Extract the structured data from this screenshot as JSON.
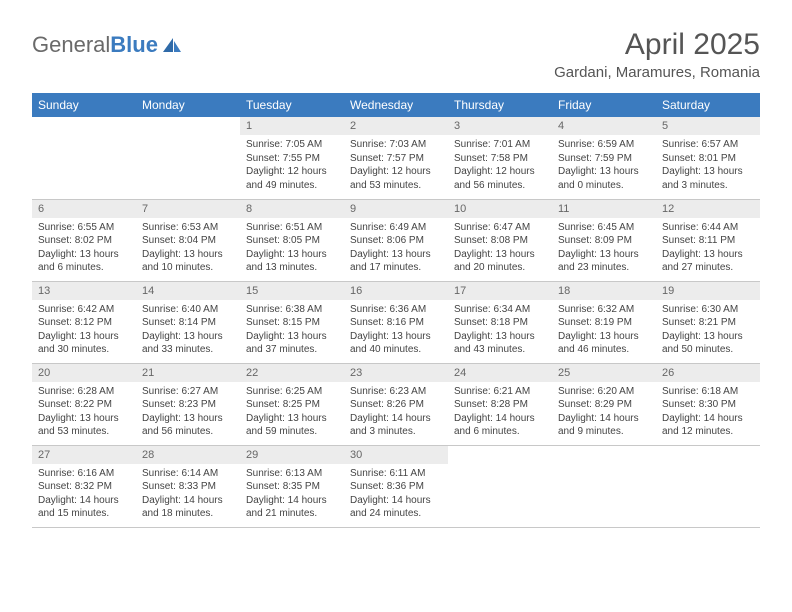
{
  "brand": {
    "name_gray": "General",
    "name_blue": "Blue"
  },
  "title": "April 2025",
  "location": "Gardani, Maramures, Romania",
  "colors": {
    "header_bg": "#3b7bbf",
    "header_text": "#ffffff",
    "daynum_bg": "#ececec",
    "text": "#444444",
    "border": "#c8c8c8"
  },
  "typography": {
    "title_fontsize": 30,
    "location_fontsize": 15,
    "header_fontsize": 12,
    "cell_fontsize": 10
  },
  "day_headers": [
    "Sunday",
    "Monday",
    "Tuesday",
    "Wednesday",
    "Thursday",
    "Friday",
    "Saturday"
  ],
  "weeks": [
    [
      {
        "n": "",
        "sunrise": "",
        "sunset": "",
        "daylight": ""
      },
      {
        "n": "",
        "sunrise": "",
        "sunset": "",
        "daylight": ""
      },
      {
        "n": "1",
        "sunrise": "Sunrise: 7:05 AM",
        "sunset": "Sunset: 7:55 PM",
        "daylight": "Daylight: 12 hours and 49 minutes."
      },
      {
        "n": "2",
        "sunrise": "Sunrise: 7:03 AM",
        "sunset": "Sunset: 7:57 PM",
        "daylight": "Daylight: 12 hours and 53 minutes."
      },
      {
        "n": "3",
        "sunrise": "Sunrise: 7:01 AM",
        "sunset": "Sunset: 7:58 PM",
        "daylight": "Daylight: 12 hours and 56 minutes."
      },
      {
        "n": "4",
        "sunrise": "Sunrise: 6:59 AM",
        "sunset": "Sunset: 7:59 PM",
        "daylight": "Daylight: 13 hours and 0 minutes."
      },
      {
        "n": "5",
        "sunrise": "Sunrise: 6:57 AM",
        "sunset": "Sunset: 8:01 PM",
        "daylight": "Daylight: 13 hours and 3 minutes."
      }
    ],
    [
      {
        "n": "6",
        "sunrise": "Sunrise: 6:55 AM",
        "sunset": "Sunset: 8:02 PM",
        "daylight": "Daylight: 13 hours and 6 minutes."
      },
      {
        "n": "7",
        "sunrise": "Sunrise: 6:53 AM",
        "sunset": "Sunset: 8:04 PM",
        "daylight": "Daylight: 13 hours and 10 minutes."
      },
      {
        "n": "8",
        "sunrise": "Sunrise: 6:51 AM",
        "sunset": "Sunset: 8:05 PM",
        "daylight": "Daylight: 13 hours and 13 minutes."
      },
      {
        "n": "9",
        "sunrise": "Sunrise: 6:49 AM",
        "sunset": "Sunset: 8:06 PM",
        "daylight": "Daylight: 13 hours and 17 minutes."
      },
      {
        "n": "10",
        "sunrise": "Sunrise: 6:47 AM",
        "sunset": "Sunset: 8:08 PM",
        "daylight": "Daylight: 13 hours and 20 minutes."
      },
      {
        "n": "11",
        "sunrise": "Sunrise: 6:45 AM",
        "sunset": "Sunset: 8:09 PM",
        "daylight": "Daylight: 13 hours and 23 minutes."
      },
      {
        "n": "12",
        "sunrise": "Sunrise: 6:44 AM",
        "sunset": "Sunset: 8:11 PM",
        "daylight": "Daylight: 13 hours and 27 minutes."
      }
    ],
    [
      {
        "n": "13",
        "sunrise": "Sunrise: 6:42 AM",
        "sunset": "Sunset: 8:12 PM",
        "daylight": "Daylight: 13 hours and 30 minutes."
      },
      {
        "n": "14",
        "sunrise": "Sunrise: 6:40 AM",
        "sunset": "Sunset: 8:14 PM",
        "daylight": "Daylight: 13 hours and 33 minutes."
      },
      {
        "n": "15",
        "sunrise": "Sunrise: 6:38 AM",
        "sunset": "Sunset: 8:15 PM",
        "daylight": "Daylight: 13 hours and 37 minutes."
      },
      {
        "n": "16",
        "sunrise": "Sunrise: 6:36 AM",
        "sunset": "Sunset: 8:16 PM",
        "daylight": "Daylight: 13 hours and 40 minutes."
      },
      {
        "n": "17",
        "sunrise": "Sunrise: 6:34 AM",
        "sunset": "Sunset: 8:18 PM",
        "daylight": "Daylight: 13 hours and 43 minutes."
      },
      {
        "n": "18",
        "sunrise": "Sunrise: 6:32 AM",
        "sunset": "Sunset: 8:19 PM",
        "daylight": "Daylight: 13 hours and 46 minutes."
      },
      {
        "n": "19",
        "sunrise": "Sunrise: 6:30 AM",
        "sunset": "Sunset: 8:21 PM",
        "daylight": "Daylight: 13 hours and 50 minutes."
      }
    ],
    [
      {
        "n": "20",
        "sunrise": "Sunrise: 6:28 AM",
        "sunset": "Sunset: 8:22 PM",
        "daylight": "Daylight: 13 hours and 53 minutes."
      },
      {
        "n": "21",
        "sunrise": "Sunrise: 6:27 AM",
        "sunset": "Sunset: 8:23 PM",
        "daylight": "Daylight: 13 hours and 56 minutes."
      },
      {
        "n": "22",
        "sunrise": "Sunrise: 6:25 AM",
        "sunset": "Sunset: 8:25 PM",
        "daylight": "Daylight: 13 hours and 59 minutes."
      },
      {
        "n": "23",
        "sunrise": "Sunrise: 6:23 AM",
        "sunset": "Sunset: 8:26 PM",
        "daylight": "Daylight: 14 hours and 3 minutes."
      },
      {
        "n": "24",
        "sunrise": "Sunrise: 6:21 AM",
        "sunset": "Sunset: 8:28 PM",
        "daylight": "Daylight: 14 hours and 6 minutes."
      },
      {
        "n": "25",
        "sunrise": "Sunrise: 6:20 AM",
        "sunset": "Sunset: 8:29 PM",
        "daylight": "Daylight: 14 hours and 9 minutes."
      },
      {
        "n": "26",
        "sunrise": "Sunrise: 6:18 AM",
        "sunset": "Sunset: 8:30 PM",
        "daylight": "Daylight: 14 hours and 12 minutes."
      }
    ],
    [
      {
        "n": "27",
        "sunrise": "Sunrise: 6:16 AM",
        "sunset": "Sunset: 8:32 PM",
        "daylight": "Daylight: 14 hours and 15 minutes."
      },
      {
        "n": "28",
        "sunrise": "Sunrise: 6:14 AM",
        "sunset": "Sunset: 8:33 PM",
        "daylight": "Daylight: 14 hours and 18 minutes."
      },
      {
        "n": "29",
        "sunrise": "Sunrise: 6:13 AM",
        "sunset": "Sunset: 8:35 PM",
        "daylight": "Daylight: 14 hours and 21 minutes."
      },
      {
        "n": "30",
        "sunrise": "Sunrise: 6:11 AM",
        "sunset": "Sunset: 8:36 PM",
        "daylight": "Daylight: 14 hours and 24 minutes."
      },
      {
        "n": "",
        "sunrise": "",
        "sunset": "",
        "daylight": ""
      },
      {
        "n": "",
        "sunrise": "",
        "sunset": "",
        "daylight": ""
      },
      {
        "n": "",
        "sunrise": "",
        "sunset": "",
        "daylight": ""
      }
    ]
  ]
}
